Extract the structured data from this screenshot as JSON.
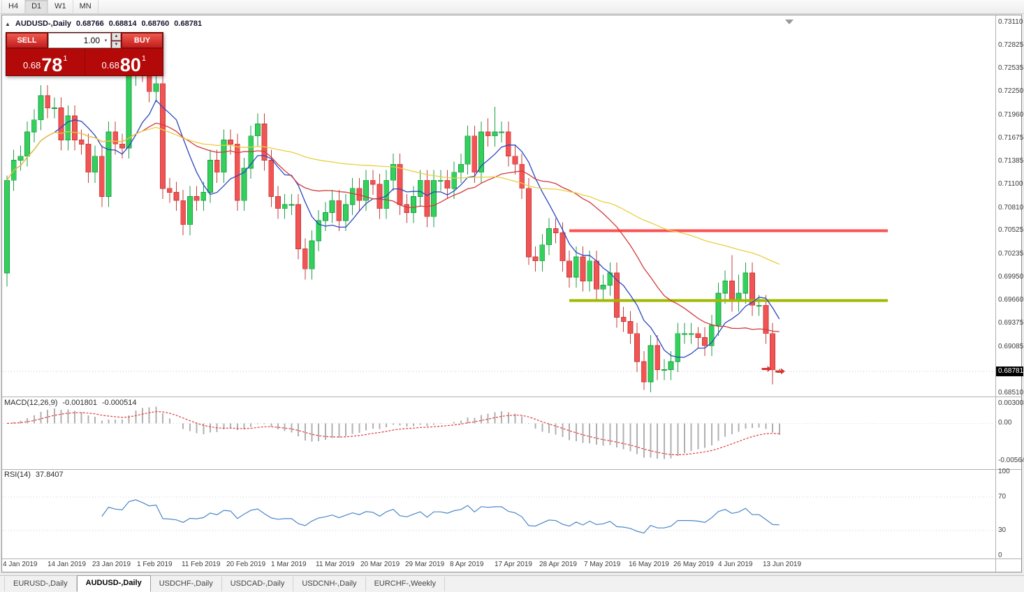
{
  "icons": {
    "collapse": "▲",
    "dropdown": "▾",
    "spin_up": "▲",
    "spin_down": "▼"
  },
  "toolbar": {
    "timeframes": [
      "H4",
      "D1",
      "W1",
      "MN"
    ],
    "active": "D1"
  },
  "chart_header": {
    "symbol": "AUDUSD-,Daily",
    "open": "0.68766",
    "high": "0.68814",
    "low": "0.68760",
    "close": "0.68781"
  },
  "one_click": {
    "sell_label": "SELL",
    "buy_label": "BUY",
    "volume": "1.00",
    "sell_price": {
      "prefix": "0.68",
      "pips": "78",
      "pipette": "1"
    },
    "buy_price": {
      "prefix": "0.68",
      "pips": "80",
      "pipette": "1"
    }
  },
  "price_axis": {
    "labels": [
      "0.73110",
      "0.72825",
      "0.72535",
      "0.72250",
      "0.71960",
      "0.71675",
      "0.71385",
      "0.71100",
      "0.70810",
      "0.70525",
      "0.70235",
      "0.69950",
      "0.69660",
      "0.69375",
      "0.69085",
      "0.68510"
    ],
    "current": "0.68781"
  },
  "macd_pane": {
    "title": "MACD(12,26,9)",
    "value_main": "-0.001801",
    "value_signal": "-0.000514",
    "axis_labels": [
      "0.003003",
      "0.00",
      "-0.005648"
    ]
  },
  "rsi_pane": {
    "title": "RSI(14)",
    "value": "37.8407",
    "axis_labels": [
      "100",
      "70",
      "30",
      "0"
    ]
  },
  "date_axis": {
    "labels": [
      "4 Jan 2019",
      "14 Jan 2019",
      "23 Jan 2019",
      "1 Feb 2019",
      "11 Feb 2019",
      "20 Feb 2019",
      "1 Mar 2019",
      "11 Mar 2019",
      "20 Mar 2019",
      "29 Mar 2019",
      "8 Apr 2019",
      "17 Apr 2019",
      "28 Apr 2019",
      "7 May 2019",
      "16 May 2019",
      "26 May 2019",
      "4 Jun 2019",
      "13 Jun 2019"
    ]
  },
  "tabs": [
    {
      "label": "EURUSD-,Daily",
      "active": false
    },
    {
      "label": "AUDUSD-,Daily",
      "active": true
    },
    {
      "label": "USDCHF-,Daily",
      "active": false
    },
    {
      "label": "USDCAD-,Daily",
      "active": false
    },
    {
      "label": "USDCNH-,Daily",
      "active": false
    },
    {
      "label": "EURCHF-,Weekly",
      "active": false
    }
  ],
  "chart_data": {
    "type": "candlestick",
    "symbol": "AUDUSD",
    "timeframe": "Daily",
    "current_bid": 0.68781,
    "price_range": {
      "top": 0.73162,
      "bottom": 0.68485
    },
    "colors": {
      "up": "#33d05c",
      "up_dark": "#1b9e44",
      "down": "#f25454",
      "down_dark": "#c43b3b",
      "macd_hist": "#b0b0b0",
      "macd_signal": "#e03c3c",
      "rsi": "#4a86c8",
      "hline_red": "#fa5252",
      "hline_olive": "#a3b802",
      "marker_bg": "#000000",
      "grid": "#c9c9c9"
    },
    "candles": [
      [
        0.7,
        0.7121,
        0.6983,
        0.7115
      ],
      [
        0.7115,
        0.7153,
        0.7102,
        0.714
      ],
      [
        0.714,
        0.7158,
        0.7127,
        0.7145
      ],
      [
        0.7145,
        0.7188,
        0.7132,
        0.7175
      ],
      [
        0.7175,
        0.7203,
        0.7162,
        0.719
      ],
      [
        0.719,
        0.7233,
        0.7177,
        0.722
      ],
      [
        0.722,
        0.7233,
        0.7192,
        0.7205
      ],
      [
        0.7205,
        0.7218,
        0.7192,
        0.7205
      ],
      [
        0.7205,
        0.7218,
        0.7152,
        0.7165
      ],
      [
        0.7165,
        0.7208,
        0.7152,
        0.7195
      ],
      [
        0.7195,
        0.7208,
        0.7152,
        0.7165
      ],
      [
        0.7165,
        0.7178,
        0.7147,
        0.716
      ],
      [
        0.716,
        0.7173,
        0.7112,
        0.7125
      ],
      [
        0.7125,
        0.7158,
        0.7112,
        0.7145
      ],
      [
        0.7145,
        0.7158,
        0.7082,
        0.7095
      ],
      [
        0.7095,
        0.7188,
        0.7082,
        0.7175
      ],
      [
        0.7175,
        0.7188,
        0.7147,
        0.716
      ],
      [
        0.716,
        0.7173,
        0.7142,
        0.7155
      ],
      [
        0.7155,
        0.7258,
        0.7142,
        0.7245
      ],
      [
        0.7245,
        0.7295,
        0.7232,
        0.727
      ],
      [
        0.727,
        0.729,
        0.7237,
        0.725
      ],
      [
        0.725,
        0.7263,
        0.7212,
        0.7225
      ],
      [
        0.7225,
        0.7248,
        0.7212,
        0.7235
      ],
      [
        0.7235,
        0.7248,
        0.7092,
        0.7105
      ],
      [
        0.7105,
        0.7118,
        0.7087,
        0.71
      ],
      [
        0.71,
        0.7113,
        0.7077,
        0.709
      ],
      [
        0.709,
        0.7103,
        0.7047,
        0.706
      ],
      [
        0.706,
        0.7108,
        0.7047,
        0.7095
      ],
      [
        0.7095,
        0.7108,
        0.7077,
        0.709
      ],
      [
        0.709,
        0.7113,
        0.7077,
        0.71
      ],
      [
        0.71,
        0.7153,
        0.7087,
        0.714
      ],
      [
        0.714,
        0.7153,
        0.7112,
        0.7125
      ],
      [
        0.7125,
        0.7178,
        0.7112,
        0.7165
      ],
      [
        0.7165,
        0.7178,
        0.7147,
        0.716
      ],
      [
        0.716,
        0.7173,
        0.7077,
        0.709
      ],
      [
        0.709,
        0.7143,
        0.7077,
        0.713
      ],
      [
        0.713,
        0.7183,
        0.7117,
        0.717
      ],
      [
        0.717,
        0.7198,
        0.7157,
        0.7185
      ],
      [
        0.7185,
        0.7198,
        0.7127,
        0.714
      ],
      [
        0.714,
        0.7153,
        0.7082,
        0.7095
      ],
      [
        0.7095,
        0.7108,
        0.7067,
        0.708
      ],
      [
        0.708,
        0.7098,
        0.7067,
        0.7085
      ],
      [
        0.7085,
        0.7098,
        0.7072,
        0.7085
      ],
      [
        0.7085,
        0.7098,
        0.7017,
        0.703
      ],
      [
        0.703,
        0.7043,
        0.6992,
        0.7005
      ],
      [
        0.7005,
        0.7053,
        0.6992,
        0.704
      ],
      [
        0.704,
        0.7078,
        0.7027,
        0.7065
      ],
      [
        0.7065,
        0.7088,
        0.7052,
        0.7075
      ],
      [
        0.7075,
        0.7103,
        0.7062,
        0.709
      ],
      [
        0.709,
        0.7103,
        0.7052,
        0.7065
      ],
      [
        0.7065,
        0.7098,
        0.7052,
        0.7085
      ],
      [
        0.7085,
        0.7118,
        0.7072,
        0.7105
      ],
      [
        0.7105,
        0.7118,
        0.7077,
        0.709
      ],
      [
        0.709,
        0.7128,
        0.7077,
        0.7115
      ],
      [
        0.7115,
        0.7128,
        0.7097,
        0.711
      ],
      [
        0.711,
        0.7123,
        0.7067,
        0.708
      ],
      [
        0.708,
        0.7128,
        0.7067,
        0.7115
      ],
      [
        0.7115,
        0.7148,
        0.7102,
        0.7135
      ],
      [
        0.7135,
        0.7148,
        0.7072,
        0.7085
      ],
      [
        0.7085,
        0.7098,
        0.7062,
        0.7075
      ],
      [
        0.7075,
        0.7108,
        0.7062,
        0.7095
      ],
      [
        0.7095,
        0.7128,
        0.7082,
        0.7115
      ],
      [
        0.7115,
        0.7128,
        0.7057,
        0.707
      ],
      [
        0.707,
        0.7128,
        0.7057,
        0.7115
      ],
      [
        0.7115,
        0.7128,
        0.7102,
        0.7115
      ],
      [
        0.7115,
        0.7128,
        0.7092,
        0.7105
      ],
      [
        0.7105,
        0.7138,
        0.7092,
        0.7125
      ],
      [
        0.7125,
        0.7148,
        0.7112,
        0.7135
      ],
      [
        0.7135,
        0.7183,
        0.7122,
        0.717
      ],
      [
        0.717,
        0.7183,
        0.7112,
        0.7125
      ],
      [
        0.7125,
        0.7188,
        0.7112,
        0.7175
      ],
      [
        0.7175,
        0.7192,
        0.7157,
        0.717
      ],
      [
        0.717,
        0.7206,
        0.7157,
        0.7175
      ],
      [
        0.7175,
        0.7188,
        0.7162,
        0.7175
      ],
      [
        0.7175,
        0.7188,
        0.7132,
        0.7145
      ],
      [
        0.7145,
        0.7158,
        0.7122,
        0.7135
      ],
      [
        0.7135,
        0.7148,
        0.7092,
        0.7105
      ],
      [
        0.7105,
        0.7118,
        0.701,
        0.702
      ],
      [
        0.702,
        0.7033,
        0.7002,
        0.7015
      ],
      [
        0.7015,
        0.7048,
        0.7002,
        0.7035
      ],
      [
        0.7035,
        0.7068,
        0.7022,
        0.7055
      ],
      [
        0.7055,
        0.7068,
        0.7037,
        0.705
      ],
      [
        0.705,
        0.7063,
        0.7002,
        0.7015
      ],
      [
        0.7015,
        0.7028,
        0.6982,
        0.6995
      ],
      [
        0.6995,
        0.7033,
        0.6982,
        0.702
      ],
      [
        0.702,
        0.7033,
        0.6977,
        0.699
      ],
      [
        0.699,
        0.7028,
        0.6977,
        0.7015
      ],
      [
        0.7015,
        0.7028,
        0.6967,
        0.698
      ],
      [
        0.698,
        0.6998,
        0.6967,
        0.6985
      ],
      [
        0.6985,
        0.7013,
        0.6972,
        0.7
      ],
      [
        0.7,
        0.7013,
        0.6932,
        0.6945
      ],
      [
        0.6945,
        0.6958,
        0.6927,
        0.694
      ],
      [
        0.694,
        0.6953,
        0.6912,
        0.6925
      ],
      [
        0.6925,
        0.6938,
        0.6877,
        0.689
      ],
      [
        0.689,
        0.6903,
        0.6855,
        0.6865
      ],
      [
        0.6865,
        0.6923,
        0.6852,
        0.691
      ],
      [
        0.691,
        0.6923,
        0.6867,
        0.688
      ],
      [
        0.688,
        0.6893,
        0.6867,
        0.688
      ],
      [
        0.688,
        0.6903,
        0.6867,
        0.689
      ],
      [
        0.689,
        0.6938,
        0.6877,
        0.6925
      ],
      [
        0.6925,
        0.6938,
        0.6912,
        0.6925
      ],
      [
        0.6925,
        0.6938,
        0.6912,
        0.6925
      ],
      [
        0.6925,
        0.6933,
        0.6907,
        0.692
      ],
      [
        0.692,
        0.6933,
        0.6897,
        0.691
      ],
      [
        0.691,
        0.6948,
        0.6897,
        0.6935
      ],
      [
        0.6935,
        0.6988,
        0.6922,
        0.6975
      ],
      [
        0.6975,
        0.7003,
        0.6962,
        0.699
      ],
      [
        0.699,
        0.7022,
        0.6952,
        0.6965
      ],
      [
        0.6965,
        0.6998,
        0.6952,
        0.6975
      ],
      [
        0.6975,
        0.7013,
        0.6962,
        0.7
      ],
      [
        0.7,
        0.7013,
        0.6947,
        0.696
      ],
      [
        0.696,
        0.6973,
        0.6947,
        0.696
      ],
      [
        0.696,
        0.6973,
        0.6912,
        0.6925
      ],
      [
        0.6925,
        0.6938,
        0.6862,
        0.688
      ],
      [
        0.68766,
        0.68814,
        0.6876,
        0.68781
      ]
    ],
    "moving_averages": [
      {
        "name": "fast-ma",
        "period": 8,
        "color": "#2a46c0"
      },
      {
        "name": "mid-ma",
        "period": 21,
        "color": "#d23a3a"
      },
      {
        "name": "slow-ma",
        "period": 55,
        "color": "#e9cf3e"
      }
    ],
    "hlines": [
      {
        "price": 0.70525,
        "from_index": 83,
        "to_index": 130,
        "color": "#fa5252"
      },
      {
        "price": 0.6966,
        "from_index": 83,
        "to_index": 130,
        "color": "#a3b802"
      }
    ],
    "macd": {
      "fast": 12,
      "slow": 26,
      "signal": 9,
      "range": {
        "top": 0.003003,
        "bottom": -0.005648
      }
    },
    "rsi": {
      "period": 14,
      "levels": [
        70,
        30
      ],
      "range": [
        0,
        100
      ]
    },
    "trade_marks": [
      {
        "index": 112,
        "price": 0.6881,
        "type": "sell"
      },
      {
        "index": 114,
        "price": 0.6878,
        "type": "sell"
      }
    ]
  }
}
